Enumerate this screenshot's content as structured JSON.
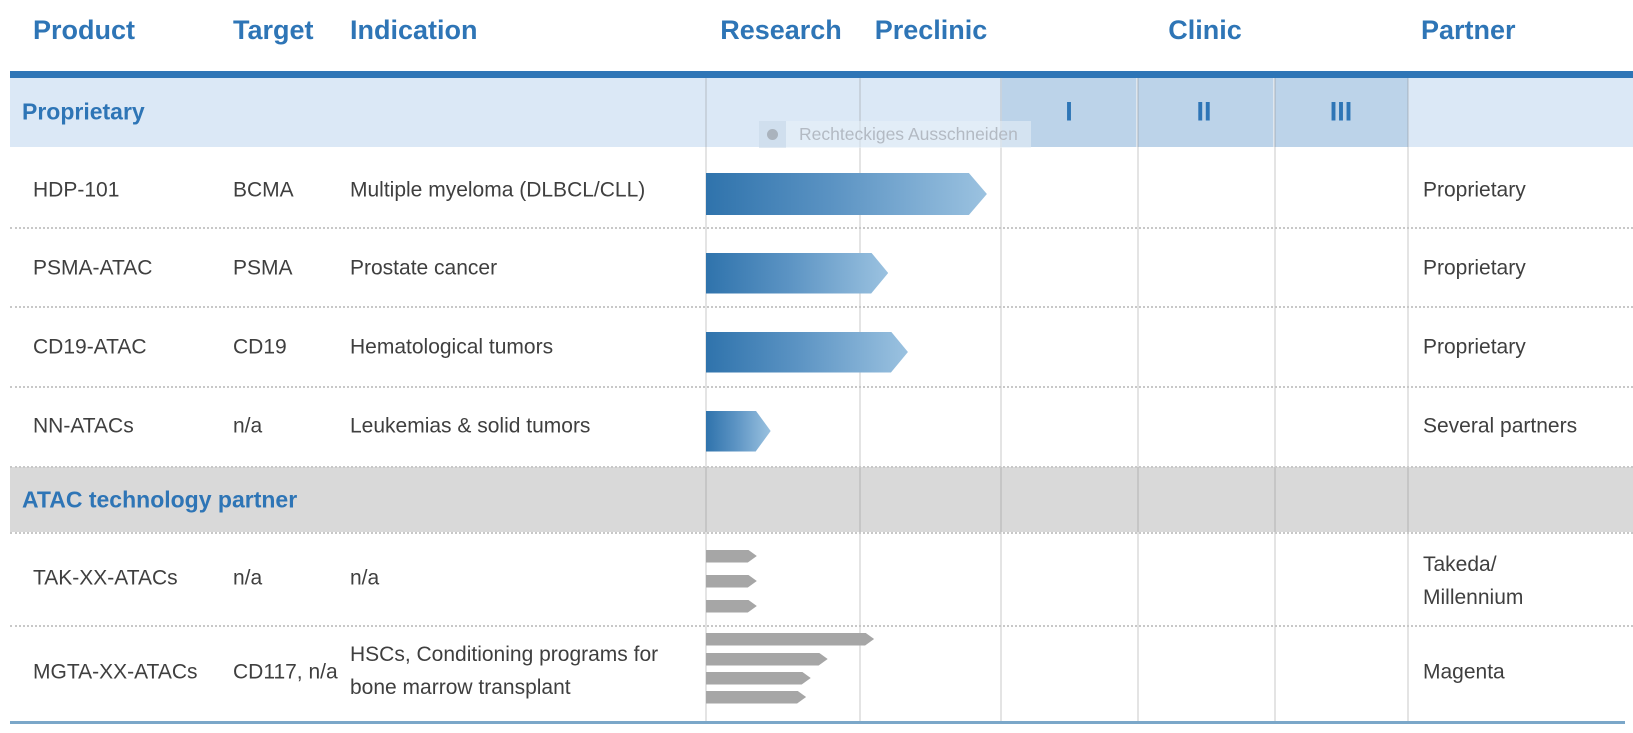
{
  "header": {
    "columns": [
      {
        "label": "Product"
      },
      {
        "label": "Target"
      },
      {
        "label": "Indication"
      },
      {
        "label": "Research"
      },
      {
        "label": "Preclinic"
      },
      {
        "label": "Clinic"
      },
      {
        "label": "Partner"
      }
    ]
  },
  "clinic_phases": [
    {
      "label": "I"
    },
    {
      "label": "II"
    },
    {
      "label": "III"
    }
  ],
  "sections": [
    {
      "label": "Proprietary"
    },
    {
      "label": "ATAC technology partner"
    }
  ],
  "rows": [
    {
      "product": "HDP-101",
      "target": "BCMA",
      "indication": "Multiple myeloma (DLBCL/CLL)",
      "partner": "Proprietary"
    },
    {
      "product": "PSMA-ATAC",
      "target": "PSMA",
      "indication": "Prostate cancer",
      "partner": "Proprietary"
    },
    {
      "product": "CD19-ATAC",
      "target": "CD19",
      "indication": "Hematological tumors",
      "partner": "Proprietary"
    },
    {
      "product": "NN-ATACs",
      "target": "n/a",
      "indication": "Leukemias & solid tumors",
      "partner": "Several partners"
    },
    {
      "product": "TAK-XX-ATACs",
      "target": "n/a",
      "indication": "n/a",
      "partner": "Takeda/\nMillennium"
    },
    {
      "product": "MGTA-XX-ATACs",
      "target": "CD117, n/a",
      "indication": "HSCs, Conditioning programs for bone marrow transplant",
      "partner": "Magenta"
    }
  ],
  "watermark": {
    "icon": "circle-dot",
    "label": "Rechteckiges Ausschneiden"
  },
  "colors": {
    "header_blue": "#2e75b6",
    "top_rule": "#2e75b6",
    "proprietary_band": "#dbe8f6",
    "clinic_phase_cell": "#bcd3e9",
    "partner_section_band": "#d9d9d9",
    "body_text": "#3f3f3f",
    "bar_blue_dark": "#2f73ac",
    "bar_blue_light": "#9bc2e0",
    "bar_gray": "#a6a6a6",
    "bottom_rule": "#7ba7c9"
  },
  "chart_data": {
    "type": "bar",
    "subtype": "pipeline-progress",
    "stages": [
      "Research",
      "Preclinic",
      "Clinic I",
      "Clinic II",
      "Clinic III"
    ],
    "unit_note": "bar 'start'/'end' are in stage units: 0 = start of Research, 1 = Research/Preclinic boundary, 2 = Preclinic/Clinic boundary",
    "series": [
      {
        "row": "HDP-101",
        "style": "blue-gradient-arrow",
        "bars": [
          {
            "start": 0,
            "end": 1.9
          }
        ]
      },
      {
        "row": "PSMA-ATAC",
        "style": "blue-gradient-arrow",
        "bars": [
          {
            "start": 0,
            "end": 1.2
          }
        ]
      },
      {
        "row": "CD19-ATAC",
        "style": "blue-gradient-arrow",
        "bars": [
          {
            "start": 0,
            "end": 1.34
          }
        ]
      },
      {
        "row": "NN-ATACs",
        "style": "blue-gradient-arrow",
        "bars": [
          {
            "start": 0,
            "end": 0.42
          }
        ]
      },
      {
        "row": "TAK-XX-ATACs",
        "style": "gray-arrow",
        "bars": [
          {
            "start": 0,
            "end": 0.33
          },
          {
            "start": 0,
            "end": 0.33
          },
          {
            "start": 0,
            "end": 0.33
          }
        ]
      },
      {
        "row": "MGTA-XX-ATACs",
        "style": "gray-arrow",
        "bars": [
          {
            "start": 0,
            "end": 1.1
          },
          {
            "start": 0,
            "end": 0.79
          },
          {
            "start": 0,
            "end": 0.68
          },
          {
            "start": 0,
            "end": 0.65
          }
        ]
      }
    ],
    "legend": "none",
    "grid": "vertical stage boundaries + dotted row separators"
  }
}
